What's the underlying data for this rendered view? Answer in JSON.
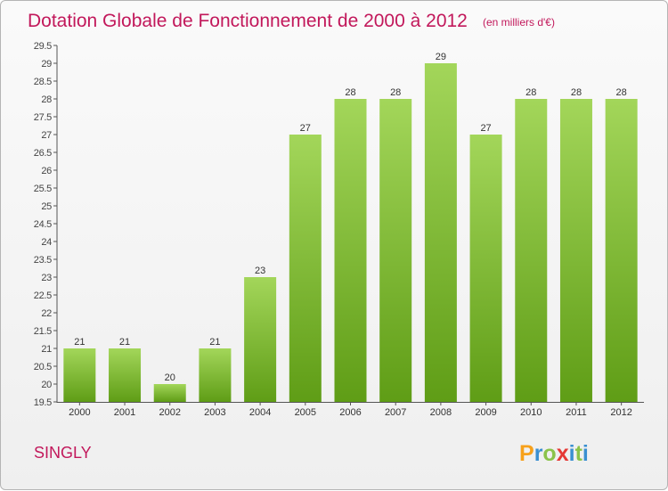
{
  "chart_data": {
    "type": "bar",
    "title": "Dotation Globale de Fonctionnement de 2000 à 2012",
    "unit": "(en milliers d'€)",
    "xlabel": "",
    "ylabel": "",
    "categories": [
      "2000",
      "2001",
      "2002",
      "2003",
      "2004",
      "2005",
      "2006",
      "2007",
      "2008",
      "2009",
      "2010",
      "2011",
      "2012"
    ],
    "values": [
      21,
      21,
      20,
      21,
      23,
      27,
      28,
      28,
      29,
      27,
      28,
      28,
      28
    ],
    "value_labels": [
      "21",
      "21",
      "20",
      "21",
      "23",
      "27",
      "28",
      "28",
      "29",
      "27",
      "28",
      "28",
      "28"
    ],
    "ylim": [
      19.5,
      29.5
    ],
    "y_ticks": [
      "19.5",
      "20",
      "20.5",
      "21",
      "21.5",
      "22",
      "22.5",
      "23",
      "23.5",
      "24",
      "24.5",
      "25",
      "25.5",
      "26",
      "26.5",
      "27",
      "27.5",
      "28",
      "28.5",
      "29",
      "29.5"
    ],
    "grid": false
  },
  "commune": "SINGLY",
  "logo": {
    "letters": [
      "P",
      "r",
      "o",
      "x",
      "i",
      "t",
      "i"
    ]
  },
  "colors": {
    "title": "#c2185b",
    "bar_light": "#a3d65a",
    "bar_dark": "#5f9d16",
    "logo": [
      "#f7a11b",
      "#3a8fd1",
      "#8bc34a",
      "#e53935",
      "#3a8fd1",
      "#8bc34a",
      "#3a8fd1"
    ]
  }
}
